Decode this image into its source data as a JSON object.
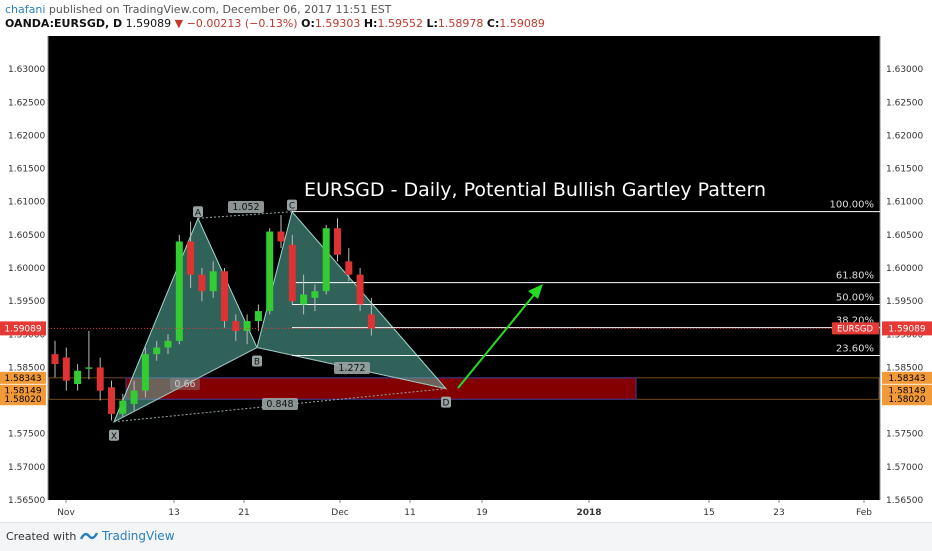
{
  "header": {
    "username": "chafani",
    "published_text": "published on TradingView.com, December 06, 2017 11:51 EST",
    "symbol": "OANDA:EURSGD, D",
    "last": "1.59089",
    "change": "−0.00213 (−0.13%)",
    "open_label": "O:",
    "open": "1.59303",
    "high_label": "H:",
    "high": "1.59552",
    "low_label": "L:",
    "low": "1.58978",
    "close_label": "C:",
    "close": "1.59089"
  },
  "footer": {
    "created_with": "Created with",
    "brand": "TradingView"
  },
  "colors": {
    "background": "#000000",
    "bull": "#33cc33",
    "bear": "#dd3333",
    "pattern_fill": "#5ab3a3",
    "zone_fill": "#8b0000",
    "current_price": "#e53935",
    "zone_label": "#f29a38",
    "arrow": "#22dd22"
  },
  "chart_data": {
    "type": "candlestick",
    "title": "EURSGD - Daily, Potential Bullish Gartley Pattern",
    "ylim": [
      1.565,
      1.635
    ],
    "y_ticks": [
      "1.63000",
      "1.62500",
      "1.62000",
      "1.61500",
      "1.61000",
      "1.60500",
      "1.60000",
      "1.59500",
      "1.59000",
      "1.58500",
      "1.58000",
      "1.57500",
      "1.57000",
      "1.56500"
    ],
    "x_ticks": [
      "Nov",
      "13",
      "21",
      "Dec",
      "11",
      "19",
      "2018",
      "15",
      "23",
      "Feb"
    ],
    "candles": [
      {
        "o": 1.587,
        "h": 1.589,
        "l": 1.5835,
        "c": 1.5855
      },
      {
        "o": 1.5865,
        "h": 1.588,
        "l": 1.5815,
        "c": 1.583
      },
      {
        "o": 1.5825,
        "h": 1.5855,
        "l": 1.5815,
        "c": 1.5845
      },
      {
        "o": 1.5848,
        "h": 1.5905,
        "l": 1.5832,
        "c": 1.585
      },
      {
        "o": 1.585,
        "h": 1.5865,
        "l": 1.58,
        "c": 1.5815
      },
      {
        "o": 1.582,
        "h": 1.583,
        "l": 1.577,
        "c": 1.578
      },
      {
        "o": 1.578,
        "h": 1.581,
        "l": 1.5775,
        "c": 1.58
      },
      {
        "o": 1.5795,
        "h": 1.583,
        "l": 1.5785,
        "c": 1.5815
      },
      {
        "o": 1.5815,
        "h": 1.588,
        "l": 1.5805,
        "c": 1.587
      },
      {
        "o": 1.587,
        "h": 1.589,
        "l": 1.586,
        "c": 1.588
      },
      {
        "o": 1.588,
        "h": 1.59,
        "l": 1.587,
        "c": 1.589
      },
      {
        "o": 1.589,
        "h": 1.605,
        "l": 1.5885,
        "c": 1.604
      },
      {
        "o": 1.604,
        "h": 1.607,
        "l": 1.597,
        "c": 1.599
      },
      {
        "o": 1.599,
        "h": 1.6,
        "l": 1.595,
        "c": 1.5965
      },
      {
        "o": 1.5965,
        "h": 1.601,
        "l": 1.5955,
        "c": 1.5995
      },
      {
        "o": 1.5995,
        "h": 1.6,
        "l": 1.591,
        "c": 1.592
      },
      {
        "o": 1.592,
        "h": 1.593,
        "l": 1.589,
        "c": 1.5905
      },
      {
        "o": 1.5905,
        "h": 1.593,
        "l": 1.5885,
        "c": 1.592
      },
      {
        "o": 1.592,
        "h": 1.5945,
        "l": 1.5905,
        "c": 1.5935
      },
      {
        "o": 1.5935,
        "h": 1.606,
        "l": 1.593,
        "c": 1.6055
      },
      {
        "o": 1.6055,
        "h": 1.608,
        "l": 1.603,
        "c": 1.604
      },
      {
        "o": 1.6035,
        "h": 1.605,
        "l": 1.5945,
        "c": 1.595
      },
      {
        "o": 1.5945,
        "h": 1.599,
        "l": 1.593,
        "c": 1.596
      },
      {
        "o": 1.5955,
        "h": 1.5975,
        "l": 1.5935,
        "c": 1.5965
      },
      {
        "o": 1.5965,
        "h": 1.6065,
        "l": 1.596,
        "c": 1.606
      },
      {
        "o": 1.606,
        "h": 1.6075,
        "l": 1.601,
        "c": 1.602
      },
      {
        "o": 1.601,
        "h": 1.603,
        "l": 1.598,
        "c": 1.599
      },
      {
        "o": 1.599,
        "h": 1.6,
        "l": 1.5935,
        "c": 1.5945
      },
      {
        "o": 1.593,
        "h": 1.5955,
        "l": 1.5898,
        "c": 1.5909
      }
    ],
    "pattern": {
      "points": [
        {
          "label": "X",
          "value": 1.5768
        },
        {
          "label": "A",
          "value": 1.6075
        },
        {
          "label": "B",
          "value": 1.588
        },
        {
          "label": "C",
          "value": 1.6085
        },
        {
          "label": "D",
          "value": 1.5818
        }
      ],
      "ratios": [
        "1.052",
        "1.272",
        "0.66",
        "0.848"
      ]
    },
    "fib_levels": [
      {
        "label": "100.00%",
        "value": 1.6085
      },
      {
        "label": "61.80%",
        "value": 1.5978
      },
      {
        "label": "50.00%",
        "value": 1.5945
      },
      {
        "label": "38.20%",
        "value": 1.591
      },
      {
        "label": "23.60%",
        "value": 1.5868
      }
    ],
    "price_labels": {
      "current": "1.59089",
      "current_symbol": "EURSGD",
      "zone": [
        "1.58343",
        "1.58149",
        "1.58020"
      ]
    },
    "zone": {
      "top": 1.58343,
      "bottom": 1.5802
    }
  }
}
